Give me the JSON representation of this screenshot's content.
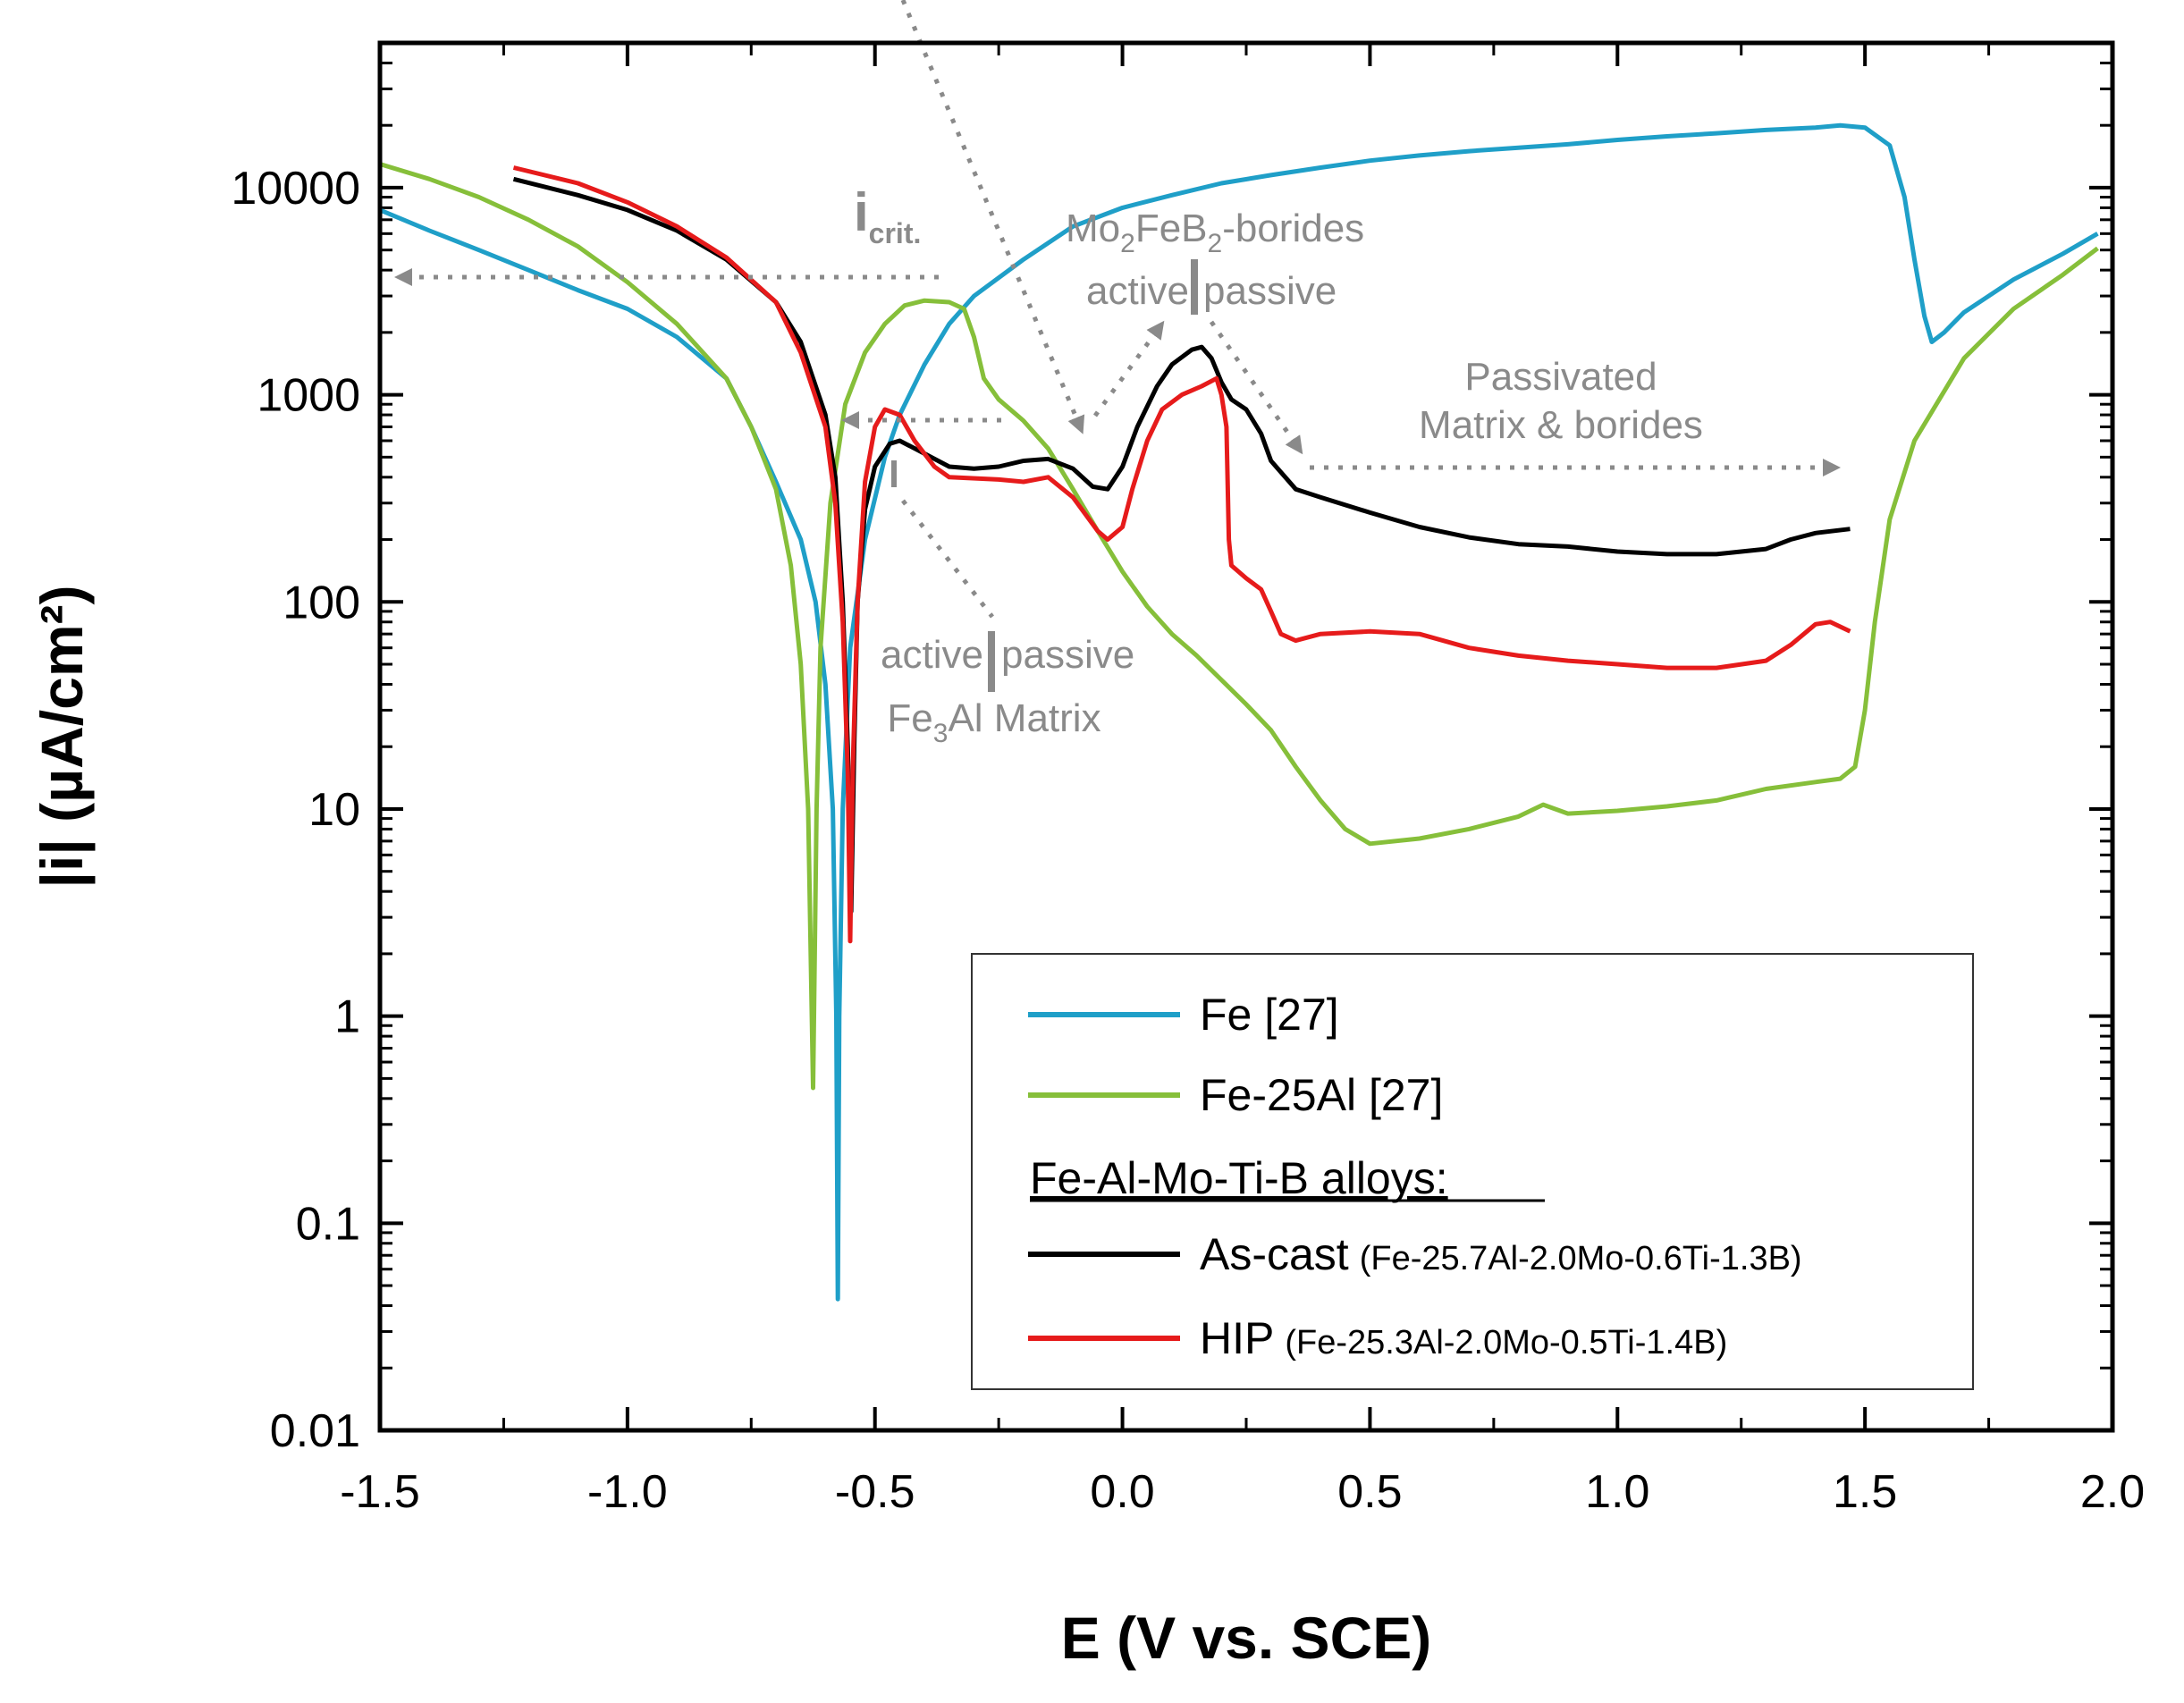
{
  "chart_data": {
    "type": "line",
    "title": "",
    "xlabel": "E (V vs. SCE)",
    "ylabel": "|i| (µA/cm²)",
    "xlim": [
      -1.5,
      2.0
    ],
    "ylim": [
      0.01,
      50000
    ],
    "yscale": "log",
    "x_ticks": [
      {
        "v": -1.5,
        "label": "-1.5"
      },
      {
        "v": -1.0,
        "label": "-1.0"
      },
      {
        "v": -0.5,
        "label": "-0.5"
      },
      {
        "v": 0.0,
        "label": "0.0"
      },
      {
        "v": 0.5,
        "label": "0.5"
      },
      {
        "v": 1.0,
        "label": "1.0"
      },
      {
        "v": 1.5,
        "label": "1.5"
      },
      {
        "v": 2.0,
        "label": "2.0"
      }
    ],
    "y_ticks": [
      {
        "v": 0.01,
        "label": "0.01"
      },
      {
        "v": 0.1,
        "label": "0.1"
      },
      {
        "v": 1,
        "label": "1"
      },
      {
        "v": 10,
        "label": "10"
      },
      {
        "v": 100,
        "label": "100"
      },
      {
        "v": 1000,
        "label": "1000"
      },
      {
        "v": 10000,
        "label": "10000"
      }
    ],
    "series": [
      {
        "name": "Fe [27]",
        "color": "#1f9fc8",
        "points": [
          [
            -1.5,
            7800
          ],
          [
            -1.4,
            6200
          ],
          [
            -1.3,
            5000
          ],
          [
            -1.2,
            4000
          ],
          [
            -1.1,
            3200
          ],
          [
            -1.0,
            2600
          ],
          [
            -0.9,
            1900
          ],
          [
            -0.8,
            1200
          ],
          [
            -0.75,
            700
          ],
          [
            -0.7,
            380
          ],
          [
            -0.65,
            200
          ],
          [
            -0.62,
            100
          ],
          [
            -0.6,
            40
          ],
          [
            -0.585,
            10
          ],
          [
            -0.578,
            1
          ],
          [
            -0.575,
            0.043
          ],
          [
            -0.572,
            1
          ],
          [
            -0.565,
            10
          ],
          [
            -0.55,
            60
          ],
          [
            -0.52,
            200
          ],
          [
            -0.48,
            500
          ],
          [
            -0.45,
            800
          ],
          [
            -0.4,
            1400
          ],
          [
            -0.35,
            2200
          ],
          [
            -0.3,
            3000
          ],
          [
            -0.2,
            4500
          ],
          [
            -0.1,
            6500
          ],
          [
            0.0,
            8000
          ],
          [
            0.1,
            9200
          ],
          [
            0.2,
            10500
          ],
          [
            0.3,
            11500
          ],
          [
            0.4,
            12500
          ],
          [
            0.5,
            13500
          ],
          [
            0.6,
            14300
          ],
          [
            0.7,
            15000
          ],
          [
            0.8,
            15600
          ],
          [
            0.9,
            16200
          ],
          [
            1.0,
            17000
          ],
          [
            1.1,
            17700
          ],
          [
            1.2,
            18300
          ],
          [
            1.3,
            19000
          ],
          [
            1.4,
            19500
          ],
          [
            1.45,
            20000
          ],
          [
            1.5,
            19500
          ],
          [
            1.55,
            16000
          ],
          [
            1.58,
            9000
          ],
          [
            1.6,
            4500
          ],
          [
            1.62,
            2400
          ],
          [
            1.635,
            1800
          ],
          [
            1.66,
            2000
          ],
          [
            1.7,
            2500
          ],
          [
            1.8,
            3600
          ],
          [
            1.9,
            4800
          ],
          [
            1.97,
            6000
          ]
        ]
      },
      {
        "name": "Fe-25Al [27]",
        "color": "#86bf3a",
        "points": [
          [
            -1.5,
            13000
          ],
          [
            -1.4,
            11000
          ],
          [
            -1.3,
            9000
          ],
          [
            -1.2,
            7000
          ],
          [
            -1.1,
            5200
          ],
          [
            -1.0,
            3500
          ],
          [
            -0.9,
            2200
          ],
          [
            -0.8,
            1200
          ],
          [
            -0.75,
            700
          ],
          [
            -0.7,
            350
          ],
          [
            -0.67,
            150
          ],
          [
            -0.65,
            50
          ],
          [
            -0.635,
            10
          ],
          [
            -0.625,
            0.45
          ],
          [
            -0.618,
            10
          ],
          [
            -0.61,
            60
          ],
          [
            -0.59,
            300
          ],
          [
            -0.56,
            900
          ],
          [
            -0.52,
            1600
          ],
          [
            -0.48,
            2200
          ],
          [
            -0.44,
            2700
          ],
          [
            -0.4,
            2850
          ],
          [
            -0.35,
            2800
          ],
          [
            -0.32,
            2600
          ],
          [
            -0.3,
            1900
          ],
          [
            -0.28,
            1200
          ],
          [
            -0.25,
            950
          ],
          [
            -0.2,
            750
          ],
          [
            -0.15,
            550
          ],
          [
            -0.1,
            350
          ],
          [
            -0.05,
            220
          ],
          [
            0.0,
            140
          ],
          [
            0.05,
            95
          ],
          [
            0.1,
            70
          ],
          [
            0.15,
            55
          ],
          [
            0.2,
            42
          ],
          [
            0.25,
            32
          ],
          [
            0.3,
            24
          ],
          [
            0.35,
            16
          ],
          [
            0.4,
            11
          ],
          [
            0.45,
            8
          ],
          [
            0.5,
            6.8
          ],
          [
            0.6,
            7.2
          ],
          [
            0.7,
            8
          ],
          [
            0.8,
            9.2
          ],
          [
            0.85,
            10.5
          ],
          [
            0.9,
            9.5
          ],
          [
            1.0,
            9.8
          ],
          [
            1.1,
            10.3
          ],
          [
            1.2,
            11
          ],
          [
            1.3,
            12.5
          ],
          [
            1.4,
            13.5
          ],
          [
            1.45,
            14
          ],
          [
            1.48,
            16
          ],
          [
            1.5,
            30
          ],
          [
            1.52,
            80
          ],
          [
            1.55,
            250
          ],
          [
            1.6,
            600
          ],
          [
            1.7,
            1500
          ],
          [
            1.8,
            2600
          ],
          [
            1.9,
            3800
          ],
          [
            1.97,
            5100
          ]
        ]
      },
      {
        "name": "As-cast",
        "color": "#000000",
        "points": [
          [
            -1.23,
            11000
          ],
          [
            -1.1,
            9200
          ],
          [
            -1.0,
            7800
          ],
          [
            -0.9,
            6200
          ],
          [
            -0.8,
            4500
          ],
          [
            -0.7,
            2800
          ],
          [
            -0.65,
            1800
          ],
          [
            -0.6,
            800
          ],
          [
            -0.58,
            400
          ],
          [
            -0.565,
            100
          ],
          [
            -0.555,
            20
          ],
          [
            -0.548,
            3.2
          ],
          [
            -0.542,
            20
          ],
          [
            -0.535,
            100
          ],
          [
            -0.52,
            280
          ],
          [
            -0.5,
            450
          ],
          [
            -0.47,
            580
          ],
          [
            -0.45,
            600
          ],
          [
            -0.4,
            520
          ],
          [
            -0.35,
            450
          ],
          [
            -0.3,
            440
          ],
          [
            -0.25,
            450
          ],
          [
            -0.2,
            480
          ],
          [
            -0.15,
            490
          ],
          [
            -0.1,
            440
          ],
          [
            -0.06,
            360
          ],
          [
            -0.03,
            350
          ],
          [
            0.0,
            450
          ],
          [
            0.03,
            700
          ],
          [
            0.07,
            1100
          ],
          [
            0.1,
            1400
          ],
          [
            0.14,
            1650
          ],
          [
            0.16,
            1700
          ],
          [
            0.18,
            1500
          ],
          [
            0.2,
            1150
          ],
          [
            0.22,
            950
          ],
          [
            0.25,
            850
          ],
          [
            0.28,
            650
          ],
          [
            0.3,
            480
          ],
          [
            0.35,
            350
          ],
          [
            0.4,
            320
          ],
          [
            0.5,
            270
          ],
          [
            0.6,
            230
          ],
          [
            0.7,
            205
          ],
          [
            0.8,
            190
          ],
          [
            0.9,
            185
          ],
          [
            1.0,
            175
          ],
          [
            1.1,
            170
          ],
          [
            1.2,
            170
          ],
          [
            1.3,
            180
          ],
          [
            1.35,
            200
          ],
          [
            1.4,
            215
          ],
          [
            1.47,
            225
          ]
        ]
      },
      {
        "name": "HIP",
        "color": "#e61b1b",
        "points": [
          [
            -1.23,
            12500
          ],
          [
            -1.1,
            10500
          ],
          [
            -1.0,
            8500
          ],
          [
            -0.9,
            6500
          ],
          [
            -0.8,
            4600
          ],
          [
            -0.7,
            2800
          ],
          [
            -0.65,
            1600
          ],
          [
            -0.6,
            700
          ],
          [
            -0.58,
            300
          ],
          [
            -0.565,
            80
          ],
          [
            -0.555,
            15
          ],
          [
            -0.55,
            2.3
          ],
          [
            -0.545,
            15
          ],
          [
            -0.535,
            100
          ],
          [
            -0.52,
            380
          ],
          [
            -0.5,
            700
          ],
          [
            -0.48,
            850
          ],
          [
            -0.45,
            800
          ],
          [
            -0.42,
            600
          ],
          [
            -0.38,
            450
          ],
          [
            -0.35,
            400
          ],
          [
            -0.25,
            390
          ],
          [
            -0.2,
            380
          ],
          [
            -0.15,
            400
          ],
          [
            -0.1,
            320
          ],
          [
            -0.05,
            220
          ],
          [
            -0.03,
            200
          ],
          [
            0.0,
            230
          ],
          [
            0.02,
            350
          ],
          [
            0.05,
            600
          ],
          [
            0.08,
            850
          ],
          [
            0.12,
            1000
          ],
          [
            0.16,
            1100
          ],
          [
            0.19,
            1200
          ],
          [
            0.2,
            1000
          ],
          [
            0.21,
            700
          ],
          [
            0.215,
            200
          ],
          [
            0.22,
            150
          ],
          [
            0.25,
            130
          ],
          [
            0.28,
            115
          ],
          [
            0.3,
            90
          ],
          [
            0.32,
            70
          ],
          [
            0.35,
            65
          ],
          [
            0.4,
            70
          ],
          [
            0.5,
            72
          ],
          [
            0.6,
            70
          ],
          [
            0.7,
            60
          ],
          [
            0.8,
            55
          ],
          [
            0.9,
            52
          ],
          [
            1.0,
            50
          ],
          [
            1.1,
            48
          ],
          [
            1.2,
            48
          ],
          [
            1.3,
            52
          ],
          [
            1.35,
            62
          ],
          [
            1.4,
            78
          ],
          [
            1.43,
            80
          ],
          [
            1.47,
            72
          ]
        ]
      }
    ],
    "annotations": {
      "icrit": "i",
      "icrit_sub": "crit.",
      "boride_title_a": "Mo",
      "boride_title_sub1": "2",
      "boride_title_b": "FeB",
      "boride_title_sub2": "2",
      "boride_title_c": "-borides",
      "boride_active": "active",
      "boride_passive": "passive",
      "passivated_line1": "Passivated",
      "passivated_line2": "Matrix & borides",
      "matrix_active": "active",
      "matrix_passive": "passive",
      "matrix_label_a": "Fe",
      "matrix_label_sub": "3",
      "matrix_label_b": "Al Matrix"
    },
    "legend": {
      "position": "lower-right",
      "entries": [
        {
          "label": "Fe [27]",
          "composition": "",
          "color": "#1f9fc8"
        },
        {
          "label": "Fe-25Al [27]",
          "composition": "",
          "color": "#86bf3a"
        },
        {
          "label": "As-cast",
          "composition": "(Fe-25.7Al-2.0Mo-0.6Ti-1.3B)",
          "color": "#000000"
        },
        {
          "label": "HIP",
          "composition": "(Fe-25.3Al-2.0Mo-0.5Ti-1.4B)",
          "color": "#e61b1b"
        }
      ],
      "group_heading": "Fe-Al-Mo-Ti-B alloys:"
    }
  }
}
